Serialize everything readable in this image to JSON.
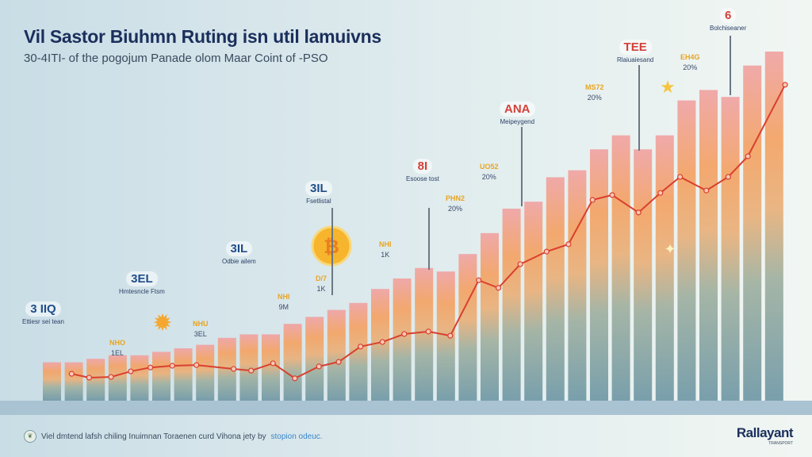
{
  "header": {
    "title": "Vil Sastor Biuhmn Ruting isn util lamuivns",
    "subtitle": "30-4ITI- of the pogojum Panade olom Maar Coint of -PSO"
  },
  "footer": {
    "text": "Viel dmtend lafsh chiling Inuimnan Toraenen curd Vihona jety by",
    "link": "stopion odeuc.",
    "logo": "Rallayant",
    "logo_tag": "TRANSPORT"
  },
  "annotations": [
    {
      "code": "3 IIQ",
      "sub": "Ettiesr sei tean"
    },
    {
      "code": "3EL",
      "sub": "Hmtesncle Ftsm"
    },
    {
      "code": "3IL",
      "sub": "Odbie ailem"
    },
    {
      "code": "3IL",
      "sub": "Fsetlistal"
    },
    {
      "code": "8I",
      "sub": "Esoose tost"
    },
    {
      "code": "ANA",
      "sub": "Meipeygend"
    },
    {
      "code": "TEE",
      "sub": "Rlaiuaiesand"
    },
    {
      "code": "6",
      "sub": "Bolchiseaner"
    }
  ],
  "value_labels": [
    {
      "v1": "NHO",
      "v2": "1EL"
    },
    {
      "v1": "NHU",
      "v2": "3EL"
    },
    {
      "v1": "NHI",
      "v2": "9M"
    },
    {
      "v1": "D/7",
      "v2": "1K"
    },
    {
      "v1": "NHI",
      "v2": "1K"
    },
    {
      "v1": "PHN2",
      "v2": "20%"
    },
    {
      "v1": "UO52",
      "v2": "20%"
    },
    {
      "v1": "MS72",
      "v2": "20%"
    },
    {
      "v1": "EH4G",
      "v2": "20%"
    }
  ],
  "colors": {
    "bar_top": "#f0a3a3",
    "bar_mid": "#f4a263",
    "bar_bottom": "#6f98a6",
    "line": "#d9402e",
    "title": "#1b2f5c"
  },
  "chart_data": {
    "type": "bar",
    "title": "Vil Sastor Biuhmn Ruting isn util lamuivns",
    "xlabel": "",
    "ylabel": "",
    "ylim": [
      0,
      100
    ],
    "grid": false,
    "values": [
      11,
      11,
      12,
      13,
      13,
      14,
      15,
      16,
      18,
      19,
      19,
      22,
      24,
      26,
      28,
      32,
      35,
      38,
      37,
      42,
      48,
      55,
      57,
      64,
      66,
      72,
      76,
      72,
      76,
      86,
      89,
      87,
      96,
      100
    ],
    "line": {
      "x": [
        0.9,
        1.7,
        2.7,
        3.6,
        4.5,
        5.5,
        6.6,
        8.3,
        9.1,
        10.1,
        11.1,
        12.2,
        13.1,
        14.1,
        15.1,
        16.1,
        17.2,
        18.2,
        19.5,
        20.4,
        21.4,
        22.6,
        23.6,
        24.7,
        25.6,
        26.8,
        27.8,
        28.7,
        29.9,
        30.9,
        31.8,
        33.5
      ],
      "y": [
        7.7,
        6.6,
        6.8,
        8.4,
        9.5,
        10,
        10.2,
        9.1,
        8.6,
        10.7,
        6.4,
        9.8,
        11.1,
        15.5,
        16.8,
        19.1,
        19.8,
        18.6,
        34.5,
        32.3,
        39.1,
        42.7,
        44.8,
        57.5,
        58.9,
        53.9,
        59.5,
        64.1,
        60.2,
        64.1,
        70,
        90.5
      ]
    }
  }
}
